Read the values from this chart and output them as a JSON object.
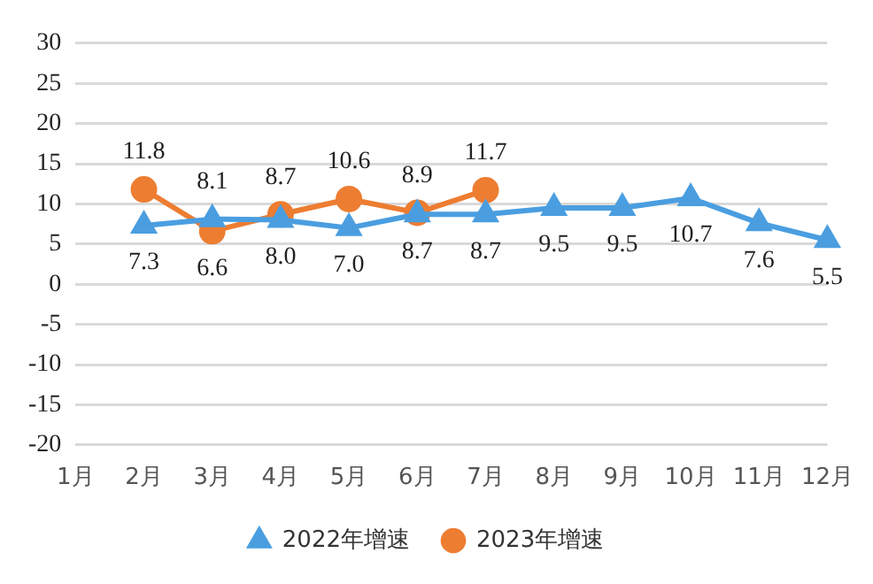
{
  "chart_data": {
    "type": "line",
    "categories": [
      "1月",
      "2月",
      "3月",
      "4月",
      "5月",
      "6月",
      "7月",
      "8月",
      "9月",
      "10月",
      "11月",
      "12月"
    ],
    "series": [
      {
        "name": "2022年增速",
        "color": "#4a9ee0",
        "marker": "triangle",
        "values": [
          null,
          7.3,
          8.1,
          8.0,
          7.0,
          8.7,
          8.7,
          9.5,
          9.5,
          10.7,
          7.6,
          5.5
        ],
        "value_labels": [
          null,
          "7.3",
          "8.1",
          "8.0",
          "7.0",
          "8.7",
          "8.7",
          "9.5",
          "9.5",
          "10.7",
          "7.6",
          "5.5"
        ]
      },
      {
        "name": "2023年增速",
        "color": "#ed7d31",
        "marker": "circle",
        "values": [
          null,
          11.8,
          6.6,
          8.7,
          10.6,
          8.9,
          11.7,
          null,
          null,
          null,
          null,
          null
        ]
      }
    ],
    "ylim": [
      -20,
      30
    ],
    "yticks": [
      -20,
      -15,
      -10,
      -5,
      0,
      5,
      10,
      15,
      20,
      25,
      30
    ],
    "grid": "y",
    "legend": "bottom",
    "data_labels": true,
    "line_style": "solid"
  }
}
